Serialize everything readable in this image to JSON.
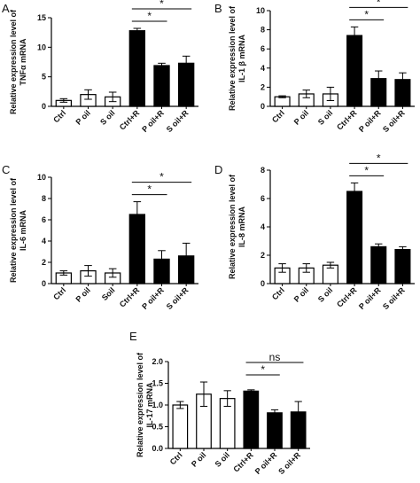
{
  "chart_data": [
    {
      "type": "bar",
      "panel": "A",
      "ylabel": [
        "Relative expression level of",
        "TNFα mRNA"
      ],
      "categories": [
        "Ctrl",
        "P oil",
        "S oil",
        "Ctrl+R",
        "P oil+R",
        "S oil+R"
      ],
      "values": [
        1.0,
        2.0,
        1.6,
        12.8,
        6.9,
        7.3
      ],
      "errors": [
        0.3,
        0.8,
        0.8,
        0.4,
        0.4,
        1.2
      ],
      "fill": [
        "white",
        "white",
        "white",
        "black",
        "black",
        "black"
      ],
      "ylim": [
        0,
        15
      ],
      "yticks": [
        0,
        5,
        10,
        15
      ],
      "significance": [
        {
          "from": 3,
          "to": 4,
          "label": "*"
        },
        {
          "from": 3,
          "to": 5,
          "label": "*"
        }
      ]
    },
    {
      "type": "bar",
      "panel": "B",
      "ylabel": [
        "Relative expression level of",
        "IL-1 β mRNA"
      ],
      "categories": [
        "Ctrl",
        "P oil",
        "S oil",
        "Ctrl+R",
        "P oil+R",
        "S oil+R"
      ],
      "values": [
        1.0,
        1.3,
        1.3,
        7.4,
        2.9,
        2.8
      ],
      "errors": [
        0.1,
        0.4,
        0.7,
        0.9,
        0.8,
        0.7
      ],
      "fill": [
        "white",
        "white",
        "white",
        "black",
        "black",
        "black"
      ],
      "ylim": [
        0,
        10
      ],
      "yticks": [
        0,
        2,
        4,
        6,
        8,
        10
      ],
      "significance": [
        {
          "from": 3,
          "to": 4,
          "label": "*"
        },
        {
          "from": 3,
          "to": 5,
          "label": "*"
        }
      ]
    },
    {
      "type": "bar",
      "panel": "C",
      "ylabel": [
        "Relative expression level of",
        "IL-6 mRNA"
      ],
      "categories": [
        "Ctrl",
        "P oil",
        "Soil",
        "Ctrl+R",
        "P oil+R",
        "S oil+R"
      ],
      "values": [
        1.0,
        1.2,
        1.0,
        6.5,
        2.3,
        2.6
      ],
      "errors": [
        0.2,
        0.5,
        0.4,
        1.2,
        0.8,
        1.2
      ],
      "fill": [
        "white",
        "white",
        "white",
        "black",
        "black",
        "black"
      ],
      "ylim": [
        0,
        10
      ],
      "yticks": [
        0,
        2,
        4,
        6,
        8,
        10
      ],
      "significance": [
        {
          "from": 3,
          "to": 4,
          "label": "*"
        },
        {
          "from": 3,
          "to": 5,
          "label": "*"
        }
      ]
    },
    {
      "type": "bar",
      "panel": "D",
      "ylabel": [
        "Relative expression level of",
        "IL-8 mRNA"
      ],
      "categories": [
        "Ctrl",
        "P oil",
        "S oil",
        "Ctrl+R",
        "P oil+R",
        "S oil+R"
      ],
      "values": [
        1.1,
        1.1,
        1.3,
        6.5,
        2.6,
        2.4
      ],
      "errors": [
        0.3,
        0.3,
        0.2,
        0.6,
        0.2,
        0.2
      ],
      "fill": [
        "white",
        "white",
        "white",
        "black",
        "black",
        "black"
      ],
      "ylim": [
        0,
        8
      ],
      "yticks": [
        0,
        2,
        4,
        6,
        8
      ],
      "significance": [
        {
          "from": 3,
          "to": 4,
          "label": "*"
        },
        {
          "from": 3,
          "to": 5,
          "label": "*"
        }
      ]
    },
    {
      "type": "bar",
      "panel": "E",
      "ylabel": [
        "Relative expression level of",
        "IL-17 mRNA"
      ],
      "categories": [
        "Ctrl",
        "P oil",
        "S oil",
        "Ctrl+R",
        "P oil+R",
        "S oil+R"
      ],
      "values": [
        1.0,
        1.25,
        1.15,
        1.32,
        0.82,
        0.84
      ],
      "errors": [
        0.08,
        0.28,
        0.18,
        0.03,
        0.07,
        0.24
      ],
      "fill": [
        "white",
        "white",
        "white",
        "black",
        "black",
        "black"
      ],
      "ylim": [
        0,
        2.0
      ],
      "yticks": [
        0.0,
        0.5,
        1.0,
        1.5,
        2.0
      ],
      "ytick_labels": [
        "0.0",
        "0.5",
        "1.0",
        "1.5",
        "2.0"
      ],
      "significance": [
        {
          "from": 3,
          "to": 4,
          "label": "*"
        },
        {
          "from": 3,
          "to": 5,
          "label": "ns"
        }
      ]
    }
  ]
}
